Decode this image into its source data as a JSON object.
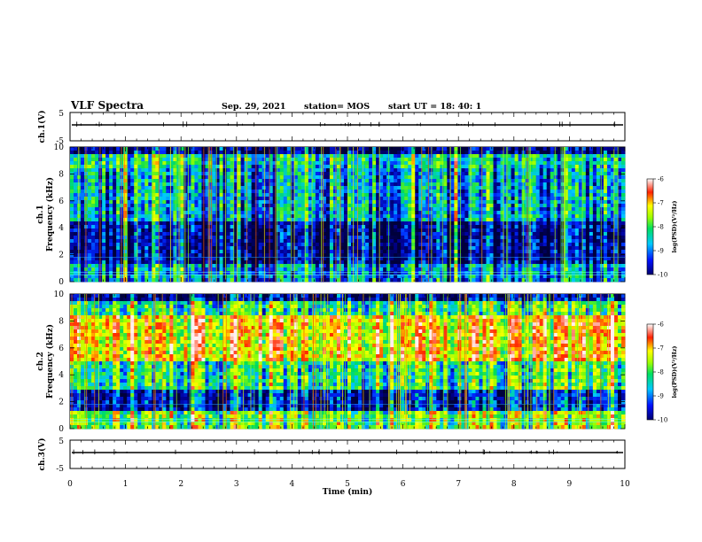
{
  "header": {
    "title": "VLF Spectra",
    "date": "Sep. 29, 2021",
    "station": "station= MOS",
    "start_ut": "start  UT =   18: 40: 1"
  },
  "chart_data": [
    {
      "type": "line",
      "name": "ch1-waveform",
      "ylabel": "ch.1(V)",
      "ylim": [
        -5,
        5
      ],
      "yticks": [
        "5",
        "-5"
      ],
      "xlim": [
        0,
        10
      ]
    },
    {
      "type": "heatmap",
      "name": "ch1-spectrogram",
      "ylabel_channel": "ch.1",
      "ylabel": "Frequency (kHz)",
      "ylim": [
        0,
        10
      ],
      "yticks": [
        "0",
        "2",
        "4",
        "6",
        "8",
        "10"
      ],
      "xlim": [
        0,
        10
      ],
      "colorbar": {
        "label": "log(PSD)(V²/Hz)",
        "range": [
          -10,
          -6
        ],
        "ticks": [
          "-6",
          "-7",
          "-8",
          "-9",
          "-10"
        ]
      }
    },
    {
      "type": "heatmap",
      "name": "ch2-spectrogram",
      "ylabel_channel": "ch.2",
      "ylabel": "Frequency (kHz)",
      "ylim": [
        0,
        10
      ],
      "yticks": [
        "0",
        "2",
        "4",
        "6",
        "8",
        "10"
      ],
      "xlim": [
        0,
        10
      ],
      "colorbar": {
        "label": "log(PSD)(V²/Hz)",
        "range": [
          -10,
          -6
        ],
        "ticks": [
          "-6",
          "-7",
          "-8",
          "-9",
          "-10"
        ]
      }
    },
    {
      "type": "line",
      "name": "ch3-waveform",
      "ylabel": "ch.3(V)",
      "ylim": [
        -5,
        5
      ],
      "yticks": [
        "5",
        "-5"
      ],
      "xlim": [
        0,
        10
      ],
      "xlabel": "Time (min)",
      "xticks": [
        "0",
        "1",
        "2",
        "3",
        "4",
        "5",
        "6",
        "7",
        "8",
        "9",
        "10"
      ]
    }
  ],
  "colors": {
    "spectrum_low": "#000050",
    "spectrum_mid": "#00c060",
    "spectrum_high": "#ff2020",
    "trace": "#000000"
  }
}
